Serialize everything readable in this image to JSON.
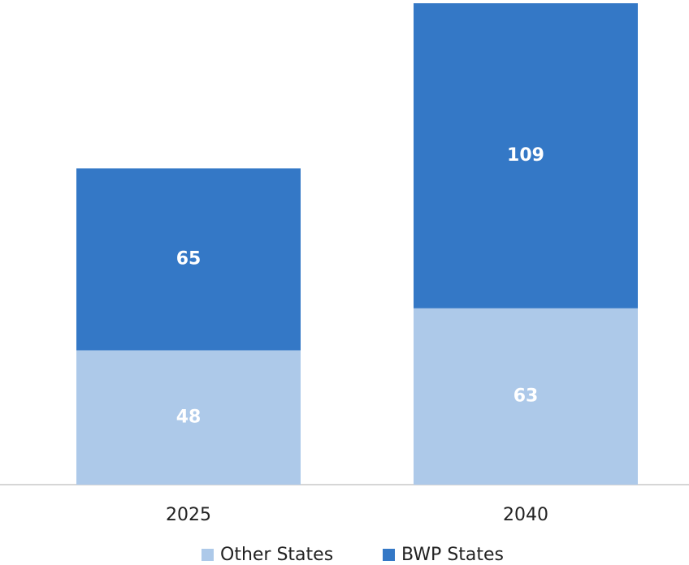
{
  "chart_data": {
    "type": "bar",
    "stacked": true,
    "categories": [
      "2025",
      "2040"
    ],
    "series": [
      {
        "name": "Other States",
        "color": "#adc9e9",
        "values": [
          48,
          63
        ]
      },
      {
        "name": "BWP States",
        "color": "#3478c6",
        "values": [
          65,
          109
        ]
      }
    ],
    "legend": "bottom"
  }
}
